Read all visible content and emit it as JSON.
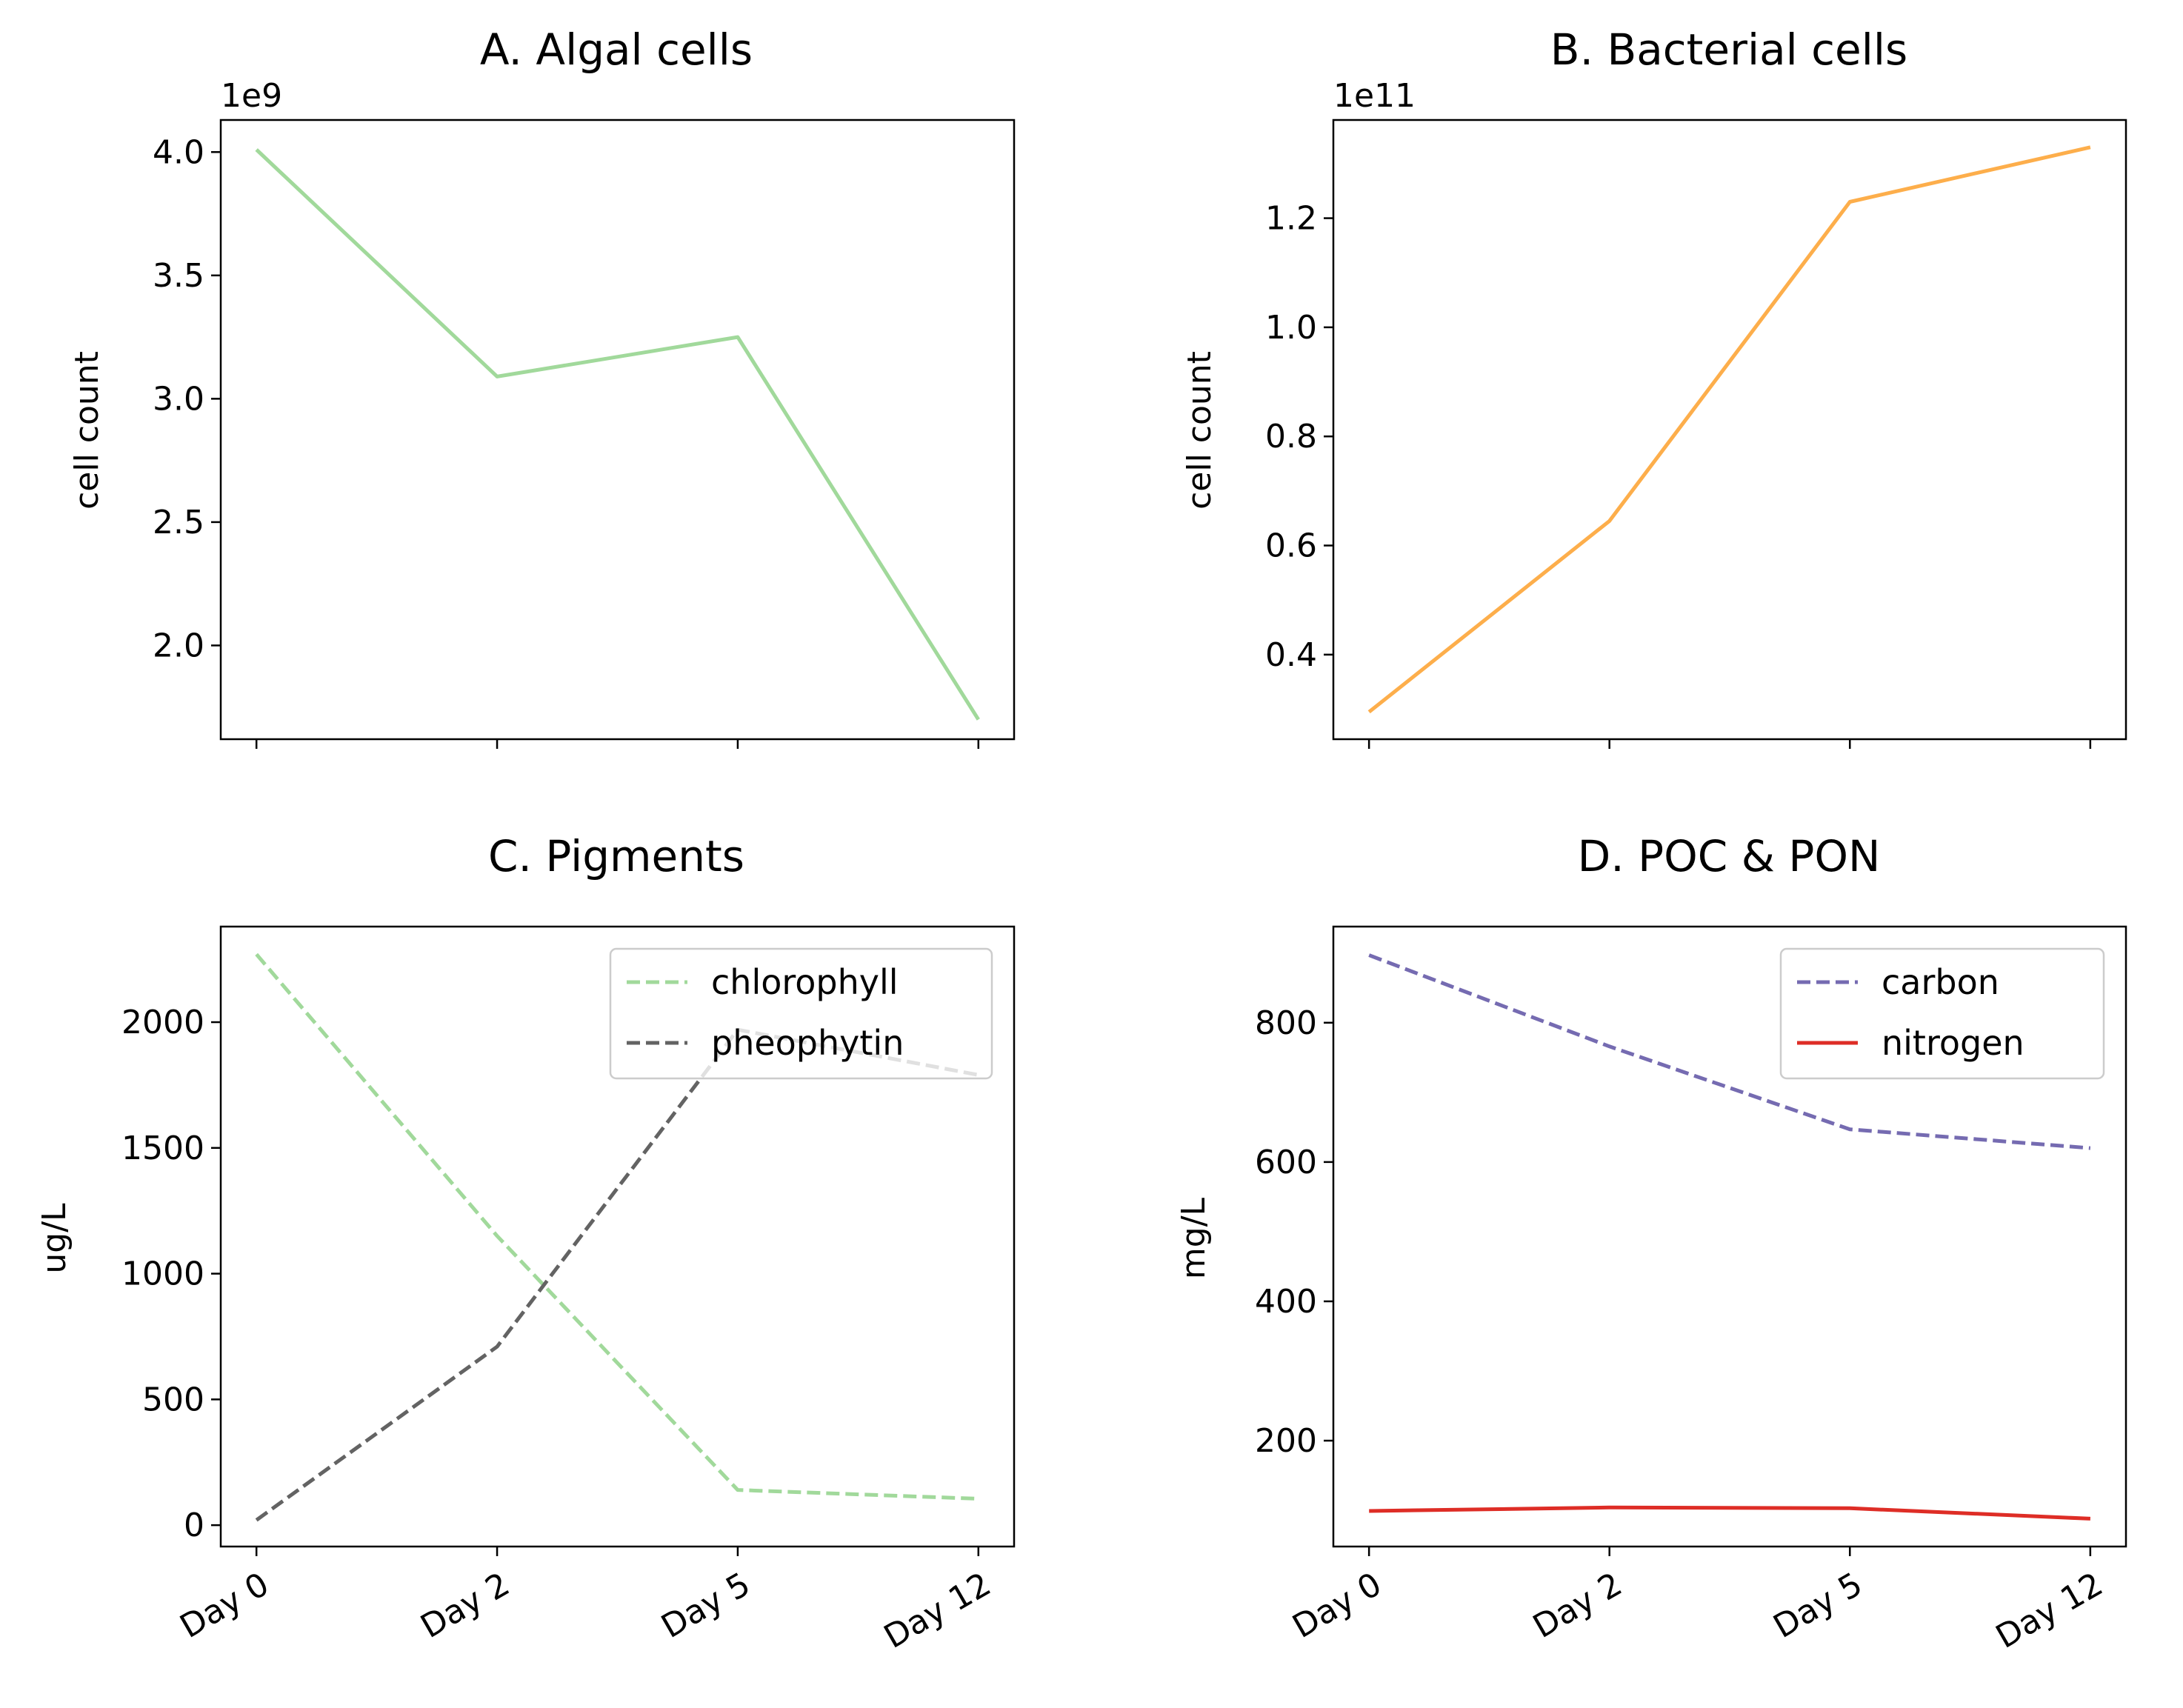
{
  "chart_data": [
    {
      "type": "line",
      "title": "A. Algal cells",
      "ylabel": "cell count",
      "offset_text": "1e9",
      "categories": [
        "Day 0",
        "Day 2",
        "Day 5",
        "Day 12"
      ],
      "ylim": [
        1.62,
        4.13
      ],
      "yticks": [
        2.0,
        2.5,
        3.0,
        3.5,
        4.0
      ],
      "ytick_labels": [
        "2.0",
        "2.5",
        "3.0",
        "3.5",
        "4.0"
      ],
      "show_xtick_labels": false,
      "series": [
        {
          "values": [
            4.01,
            3.09,
            3.25,
            1.7
          ],
          "color": "#a1d99b",
          "dashed": false
        }
      ],
      "legend": null
    },
    {
      "type": "line",
      "title": "B. Bacterial cells",
      "ylabel": "cell count",
      "offset_text": "1e11",
      "categories": [
        "Day 0",
        "Day 2",
        "Day 5",
        "Day 12"
      ],
      "ylim": [
        0.245,
        1.38
      ],
      "yticks": [
        0.4,
        0.6,
        0.8,
        1.0,
        1.2
      ],
      "ytick_labels": [
        "0.4",
        "0.6",
        "0.8",
        "1.0",
        "1.2"
      ],
      "show_xtick_labels": false,
      "series": [
        {
          "values": [
            0.295,
            0.645,
            1.23,
            1.33
          ],
          "color": "#fdae4b",
          "dashed": false
        }
      ],
      "legend": null
    },
    {
      "type": "line",
      "title": "C. Pigments",
      "ylabel": "ug/L",
      "offset_text": "",
      "categories": [
        "Day 0",
        "Day 2",
        "Day 5",
        "Day 12"
      ],
      "ylim": [
        -85,
        2380
      ],
      "yticks": [
        0,
        500,
        1000,
        1500,
        2000
      ],
      "ytick_labels": [
        "0",
        "500",
        "1000",
        "1500",
        "2000"
      ],
      "show_xtick_labels": true,
      "series": [
        {
          "name": "chlorophyll",
          "values": [
            2270,
            1150,
            140,
            105
          ],
          "color": "#a1d99b",
          "dashed": true
        },
        {
          "name": "pheophytin",
          "values": [
            20,
            710,
            1970,
            1790
          ],
          "color": "#636363",
          "dashed": true
        }
      ],
      "legend": "upper right"
    },
    {
      "type": "line",
      "title": "D. POC & PON",
      "ylabel": "mg/L",
      "offset_text": "",
      "categories": [
        "Day 0",
        "Day 2",
        "Day 5",
        "Day 12"
      ],
      "ylim": [
        48,
        938
      ],
      "yticks": [
        200,
        400,
        600,
        800
      ],
      "ytick_labels": [
        "200",
        "400",
        "600",
        "800"
      ],
      "show_xtick_labels": true,
      "series": [
        {
          "name": "carbon",
          "values": [
            897,
            766,
            647,
            620
          ],
          "color": "#756bb1",
          "dashed": true
        },
        {
          "name": "nitrogen",
          "values": [
            99,
            104,
            103,
            88
          ],
          "color": "#de2d26",
          "dashed": false
        }
      ],
      "legend": "upper right"
    }
  ]
}
